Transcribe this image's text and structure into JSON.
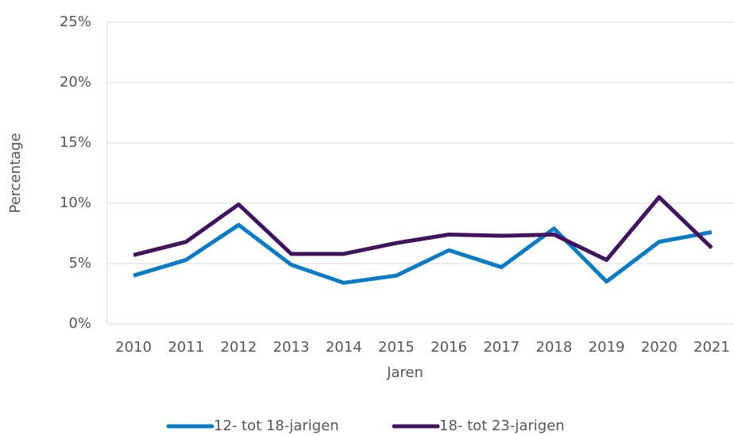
{
  "chart_data": {
    "type": "line",
    "xlabel": "Jaren",
    "ylabel": "Percentage",
    "categories": [
      "2010",
      "2011",
      "2012",
      "2013",
      "2014",
      "2015",
      "2016",
      "2017",
      "2018",
      "2019",
      "2020",
      "2021"
    ],
    "series": [
      {
        "name": "12- tot 18-jarigen",
        "color": "#0a7bc4",
        "values": [
          4.0,
          5.3,
          8.2,
          4.9,
          3.4,
          4.0,
          6.1,
          4.7,
          7.9,
          3.5,
          6.8,
          7.6
        ]
      },
      {
        "name": "18- tot 23-jarigen",
        "color": "#42145f",
        "values": [
          5.7,
          6.8,
          9.9,
          5.8,
          5.8,
          6.7,
          7.4,
          7.3,
          7.4,
          5.3,
          10.5,
          6.3
        ]
      }
    ],
    "ylim": [
      0,
      25
    ],
    "yticks": [
      {
        "value": 0,
        "label": "0%"
      },
      {
        "value": 5,
        "label": "5%"
      },
      {
        "value": 10,
        "label": "10%"
      },
      {
        "value": 15,
        "label": "15%"
      },
      {
        "value": 20,
        "label": "20%"
      },
      {
        "value": 25,
        "label": "25%"
      }
    ],
    "grid": true,
    "legend": "bottom"
  }
}
